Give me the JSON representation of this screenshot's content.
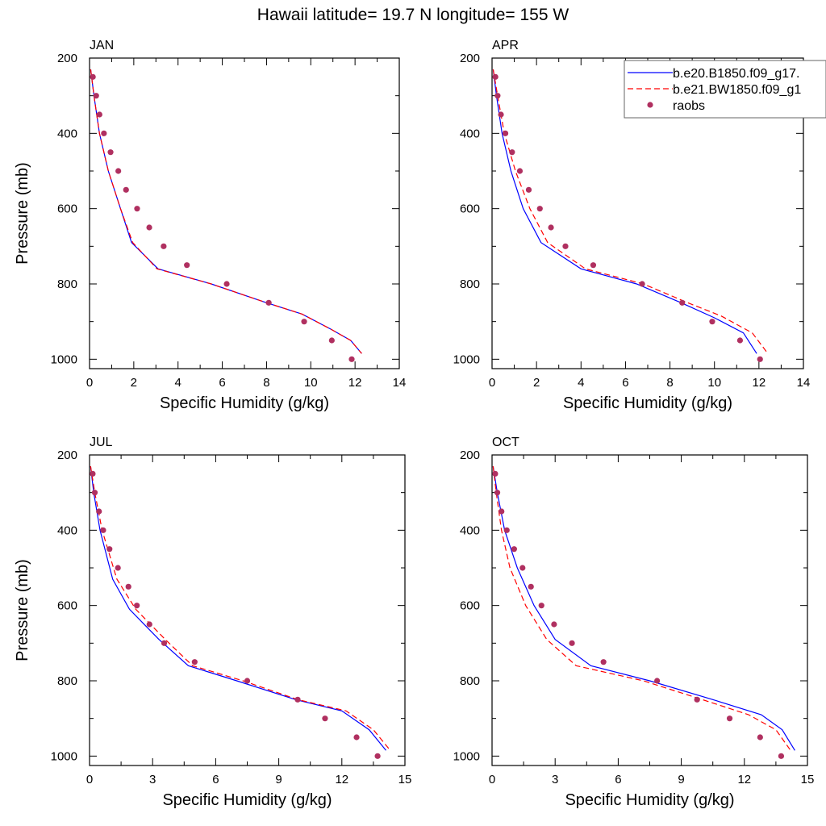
{
  "figure": {
    "title": "Hawaii  latitude= 19.7 N longitude= 155 W"
  },
  "legend": {
    "placement": "top-right of APR panel",
    "entries": [
      {
        "label": "b.e20.B1850.f09_g17.",
        "style": "solid-line",
        "color": "#0000ff"
      },
      {
        "label": "b.e21.BW1850.f09_g1",
        "style": "dashed-line",
        "color": "#ff0000"
      },
      {
        "label": "raobs",
        "style": "marker",
        "color": "#b03060"
      }
    ]
  },
  "colors": {
    "model1": "#0000ff",
    "model2": "#ff0000",
    "raobs": "#b03060"
  },
  "chart_data": [
    {
      "type": "line",
      "panel_label": "JAN",
      "xlabel": "Specific Humidity (g/kg)",
      "ylabel": "Pressure (mb)",
      "xlim": [
        0,
        14
      ],
      "ylim": [
        200,
        1025
      ],
      "y_inverted": true,
      "xticks": [
        0,
        2,
        4,
        6,
        8,
        10,
        12,
        14
      ],
      "yticks": [
        200,
        400,
        600,
        800,
        1000
      ],
      "series": [
        {
          "name": "b.e20.B1850.f09_g17.",
          "style": "solid",
          "color": "#0000ff",
          "x": [
            0.05,
            0.2,
            0.45,
            0.85,
            1.4,
            1.9,
            3.1,
            5.5,
            8.0,
            9.6,
            10.9,
            11.8,
            12.3
          ],
          "y": [
            230,
            300,
            400,
            500,
            600,
            690,
            760,
            800,
            850,
            880,
            920,
            950,
            985
          ]
        },
        {
          "name": "b.e21.BW1850.f09_g1",
          "style": "dashed",
          "color": "#ff0000",
          "x": [
            0.05,
            0.2,
            0.45,
            0.85,
            1.4,
            1.95,
            3.05,
            5.5,
            8.0,
            9.6,
            10.9,
            11.8,
            12.3
          ],
          "y": [
            230,
            300,
            400,
            500,
            600,
            690,
            760,
            800,
            850,
            880,
            920,
            950,
            985
          ]
        },
        {
          "name": "raobs",
          "style": "points",
          "color": "#b03060",
          "x": [
            0.15,
            0.3,
            0.45,
            0.65,
            0.95,
            1.3,
            1.65,
            2.15,
            2.7,
            3.35,
            4.4,
            6.2,
            8.1,
            9.7,
            10.95,
            11.85
          ],
          "y": [
            250,
            300,
            350,
            400,
            450,
            500,
            550,
            600,
            650,
            700,
            750,
            800,
            850,
            900,
            950,
            1000
          ]
        }
      ]
    },
    {
      "type": "line",
      "panel_label": "APR",
      "xlabel": "Specific Humidity (g/kg)",
      "ylabel": "",
      "xlim": [
        0,
        14
      ],
      "ylim": [
        200,
        1025
      ],
      "y_inverted": true,
      "xticks": [
        0,
        2,
        4,
        6,
        8,
        10,
        12,
        14
      ],
      "yticks": [
        200,
        400,
        600,
        800,
        1000
      ],
      "series": [
        {
          "name": "b.e20.B1850.f09_g17.",
          "style": "solid",
          "color": "#0000ff",
          "x": [
            0.05,
            0.2,
            0.45,
            0.85,
            1.4,
            2.2,
            4.0,
            6.5,
            8.5,
            10.0,
            11.3,
            11.9
          ],
          "y": [
            230,
            300,
            400,
            500,
            600,
            690,
            760,
            800,
            850,
            890,
            930,
            985
          ]
        },
        {
          "name": "b.e21.BW1850.f09_g1",
          "style": "dashed",
          "color": "#ff0000",
          "x": [
            0.05,
            0.25,
            0.55,
            1.05,
            1.7,
            2.5,
            4.2,
            6.8,
            8.8,
            10.3,
            11.7,
            12.4
          ],
          "y": [
            230,
            300,
            400,
            500,
            600,
            690,
            760,
            800,
            850,
            885,
            930,
            985
          ]
        },
        {
          "name": "raobs",
          "style": "points",
          "color": "#b03060",
          "x": [
            0.15,
            0.25,
            0.4,
            0.6,
            0.9,
            1.25,
            1.65,
            2.15,
            2.65,
            3.3,
            4.55,
            6.75,
            8.55,
            9.9,
            11.15,
            12.05
          ],
          "y": [
            250,
            300,
            350,
            400,
            450,
            500,
            550,
            600,
            650,
            700,
            750,
            800,
            850,
            900,
            950,
            1000
          ]
        }
      ]
    },
    {
      "type": "line",
      "panel_label": "JUL",
      "xlabel": "Specific Humidity (g/kg)",
      "ylabel": "Pressure (mb)",
      "xlim": [
        0,
        15
      ],
      "ylim": [
        200,
        1025
      ],
      "y_inverted": true,
      "xticks": [
        0,
        3,
        6,
        9,
        12,
        15
      ],
      "yticks": [
        200,
        400,
        600,
        800,
        1000
      ],
      "series": [
        {
          "name": "b.e20.B1850.f09_g17.",
          "style": "solid",
          "color": "#0000ff",
          "x": [
            0.05,
            0.2,
            0.5,
            1.1,
            1.9,
            3.3,
            4.7,
            7.0,
            9.8,
            12.0,
            13.3,
            14.1
          ],
          "y": [
            230,
            300,
            400,
            530,
            610,
            690,
            760,
            800,
            850,
            880,
            930,
            985
          ]
        },
        {
          "name": "b.e21.BW1850.f09_g1",
          "style": "dashed",
          "color": "#ff0000",
          "x": [
            0.05,
            0.25,
            0.6,
            1.3,
            2.2,
            3.6,
            4.9,
            7.3,
            9.9,
            12.2,
            13.5,
            14.3
          ],
          "y": [
            230,
            300,
            400,
            530,
            610,
            690,
            760,
            800,
            850,
            880,
            930,
            985
          ]
        },
        {
          "name": "raobs",
          "style": "points",
          "color": "#b03060",
          "x": [
            0.15,
            0.25,
            0.45,
            0.65,
            0.95,
            1.35,
            1.85,
            2.25,
            2.85,
            3.55,
            5.0,
            7.5,
            9.9,
            11.2,
            12.7,
            13.7
          ],
          "y": [
            250,
            300,
            350,
            400,
            450,
            500,
            550,
            600,
            650,
            700,
            750,
            800,
            850,
            900,
            950,
            1000
          ]
        }
      ]
    },
    {
      "type": "line",
      "panel_label": "OCT",
      "xlabel": "Specific Humidity (g/kg)",
      "ylabel": "",
      "xlim": [
        0,
        15
      ],
      "ylim": [
        200,
        1025
      ],
      "y_inverted": true,
      "xticks": [
        0,
        3,
        6,
        9,
        12,
        15
      ],
      "yticks": [
        200,
        400,
        600,
        800,
        1000
      ],
      "series": [
        {
          "name": "b.e20.B1850.f09_g17.",
          "style": "solid",
          "color": "#0000ff",
          "x": [
            0.05,
            0.25,
            0.6,
            1.2,
            2.0,
            3.0,
            4.7,
            7.5,
            10.5,
            12.8,
            13.8,
            14.4
          ],
          "y": [
            230,
            300,
            400,
            500,
            600,
            690,
            760,
            800,
            850,
            890,
            930,
            985
          ]
        },
        {
          "name": "b.e21.BW1850.f09_g1",
          "style": "dashed",
          "color": "#ff0000",
          "x": [
            0.05,
            0.2,
            0.45,
            0.85,
            1.6,
            2.6,
            4.0,
            7.2,
            10.0,
            12.2,
            13.5,
            14.2
          ],
          "y": [
            230,
            300,
            400,
            500,
            600,
            690,
            760,
            800,
            850,
            890,
            930,
            985
          ]
        },
        {
          "name": "raobs",
          "style": "points",
          "color": "#b03060",
          "x": [
            0.15,
            0.25,
            0.45,
            0.7,
            1.05,
            1.45,
            1.85,
            2.35,
            2.95,
            3.8,
            5.3,
            7.85,
            9.75,
            11.3,
            12.75,
            13.75
          ],
          "y": [
            250,
            300,
            350,
            400,
            450,
            500,
            550,
            600,
            650,
            700,
            750,
            800,
            850,
            900,
            950,
            1000
          ]
        }
      ]
    }
  ]
}
